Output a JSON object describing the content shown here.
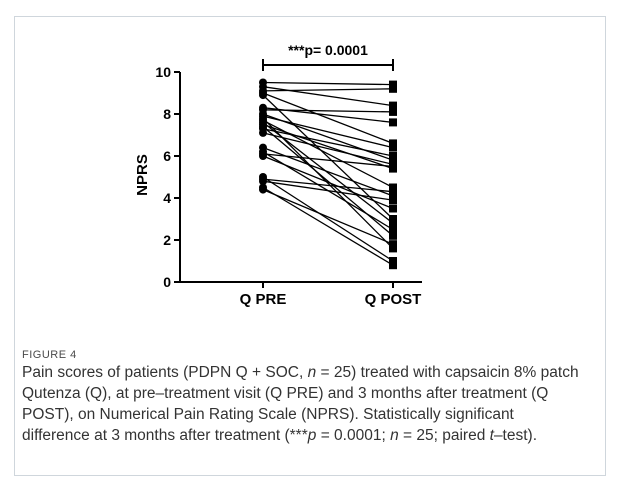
{
  "figure": {
    "label": "FIGURE 4",
    "caption_parts": [
      {
        "t": "Pain scores of patients (PDPN Q + SOC, "
      },
      {
        "t": "n",
        "i": true
      },
      {
        "t": " = 25) treated with capsaicin 8% patch Qutenza (Q), at pre–treatment visit (Q PRE) and 3 months after treatment (Q POST), on Numerical Pain Rating Scale (NPRS). Statistically significant difference at 3 months after treatment (***"
      },
      {
        "t": "p",
        "i": true
      },
      {
        "t": " = 0.0001; "
      },
      {
        "t": "n",
        "i": true
      },
      {
        "t": " = 25; paired "
      },
      {
        "t": "t",
        "i": true
      },
      {
        "t": "–test)."
      }
    ]
  },
  "chart_data": {
    "type": "line",
    "ylabel": "NPRS",
    "xlabel": "",
    "categories": [
      "Q PRE",
      "Q POST"
    ],
    "ylim": [
      0,
      10
    ],
    "yticks": [
      0,
      2,
      4,
      6,
      8,
      10
    ],
    "annotation": "***p= 0.0001",
    "series_color": "#000000",
    "pairs": [
      [
        9.5,
        9.4
      ],
      [
        9.3,
        8.4
      ],
      [
        9.1,
        9.2
      ],
      [
        9.0,
        6.6
      ],
      [
        8.9,
        3.0
      ],
      [
        8.3,
        7.6
      ],
      [
        8.2,
        8.1
      ],
      [
        8.0,
        5.8
      ],
      [
        7.9,
        6.4
      ],
      [
        7.8,
        1.6
      ],
      [
        7.7,
        4.5
      ],
      [
        7.6,
        2.8
      ],
      [
        7.5,
        5.4
      ],
      [
        7.4,
        2.2
      ],
      [
        7.3,
        6.0
      ],
      [
        7.1,
        5.6
      ],
      [
        6.4,
        4.1
      ],
      [
        6.2,
        2.5
      ],
      [
        6.1,
        5.5
      ],
      [
        6.0,
        3.5
      ],
      [
        5.0,
        1.0
      ],
      [
        4.9,
        4.3
      ],
      [
        4.8,
        3.9
      ],
      [
        4.5,
        0.8
      ],
      [
        4.4,
        1.8
      ]
    ]
  }
}
